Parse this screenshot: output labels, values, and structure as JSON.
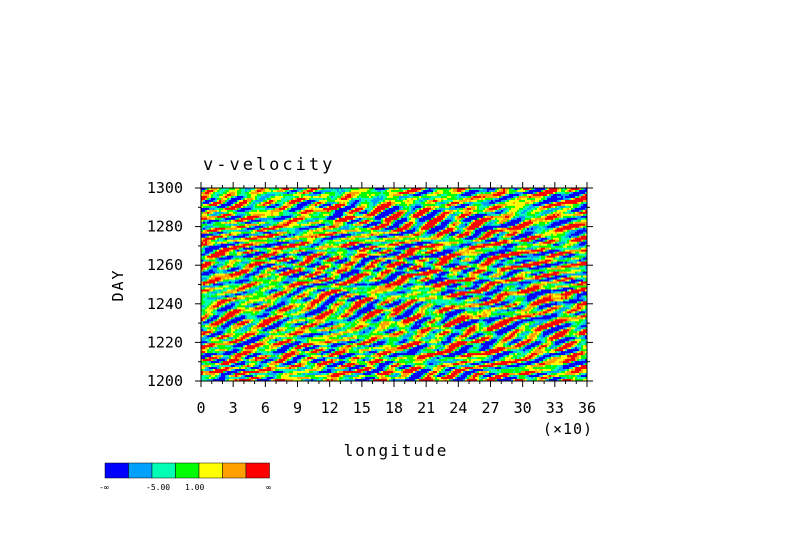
{
  "chart_data": {
    "type": "heatmap",
    "title": "v-velocity",
    "xlabel": "longitude",
    "xscale_note": "(×10)",
    "ylabel": "DAY",
    "xlim": [
      0,
      36
    ],
    "ylim": [
      1200,
      1300
    ],
    "x_ticks": [
      "0",
      "3",
      "6",
      "9",
      "12",
      "15",
      "18",
      "21",
      "24",
      "27",
      "30",
      "33",
      "36"
    ],
    "y_ticks": [
      "1200",
      "1220",
      "1240",
      "1260",
      "1280",
      "1300"
    ],
    "x_tick_values": [
      0,
      3,
      6,
      9,
      12,
      15,
      18,
      21,
      24,
      27,
      30,
      33,
      36
    ],
    "y_tick_values": [
      1200,
      1220,
      1240,
      1260,
      1280,
      1300
    ],
    "colorbar": {
      "colors": [
        "#0000ff",
        "#00a0ff",
        "#00ffb4",
        "#00ff00",
        "#ffff00",
        "#ffa000",
        "#ff0000"
      ],
      "labels": [
        "-∞",
        "-5.00",
        "1.00",
        "∞"
      ]
    }
  }
}
